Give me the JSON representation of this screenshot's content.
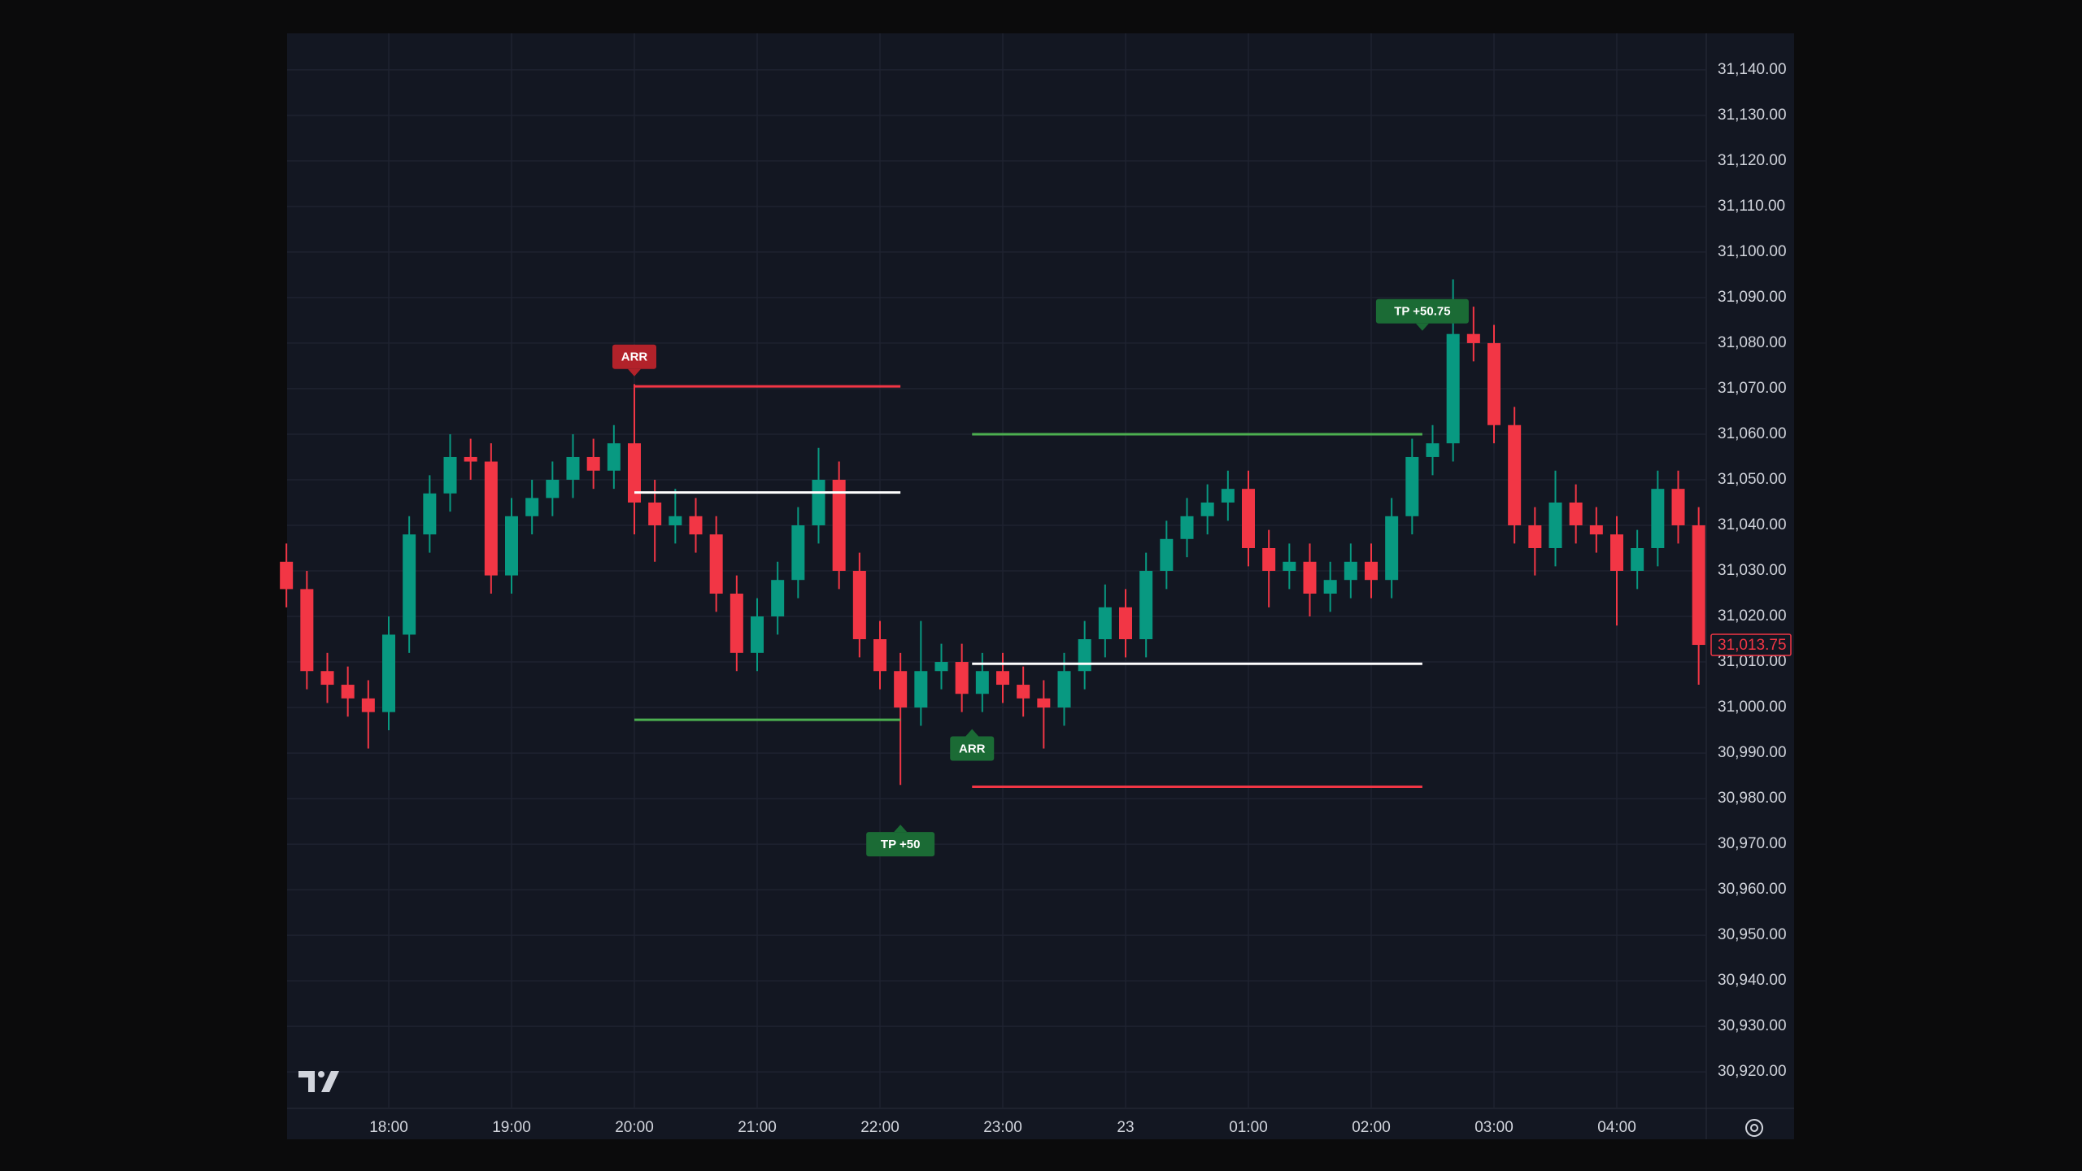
{
  "chart_data": {
    "type": "candlestick",
    "x": [
      "17:10",
      "17:20",
      "17:30",
      "17:40",
      "17:50",
      "18:00",
      "18:10",
      "18:20",
      "18:30",
      "18:40",
      "18:50",
      "19:00",
      "19:10",
      "19:20",
      "19:30",
      "19:40",
      "19:50",
      "20:00",
      "20:10",
      "20:20",
      "20:30",
      "20:40",
      "20:50",
      "21:00",
      "21:10",
      "21:20",
      "21:30",
      "21:40",
      "21:50",
      "22:00",
      "22:10",
      "22:20",
      "22:30",
      "22:40",
      "22:50",
      "23:00",
      "23:10",
      "23:20",
      "23:30",
      "23:40",
      "23:50",
      "00:00",
      "00:10",
      "00:20",
      "00:30",
      "00:40",
      "00:50",
      "01:00",
      "01:10",
      "01:20",
      "01:30",
      "01:40",
      "01:50",
      "02:00",
      "02:10",
      "02:20",
      "02:30",
      "02:40",
      "02:50",
      "03:00",
      "03:10",
      "03:20",
      "03:30",
      "03:40",
      "03:50",
      "04:00",
      "04:10",
      "04:20",
      "04:30",
      "04:40"
    ],
    "open": [
      31032,
      31026,
      31008,
      31005,
      31002,
      30999,
      31016,
      31038,
      31047,
      31055,
      31054,
      31029,
      31042,
      31046,
      31050,
      31055,
      31052,
      31058,
      31045,
      31040,
      31042,
      31038,
      31025,
      31012,
      31020,
      31028,
      31040,
      31050,
      31030,
      31015,
      31008,
      31000,
      31008,
      31010,
      31003,
      31008,
      31005,
      31002,
      31000,
      31008,
      31015,
      31022,
      31015,
      31030,
      31037,
      31042,
      31045,
      31048,
      31035,
      31030,
      31032,
      31025,
      31028,
      31032,
      31028,
      31042,
      31055,
      31058,
      31082,
      31080,
      31062,
      31040,
      31035,
      31045,
      31040,
      31038,
      31030,
      31035,
      31048,
      31040
    ],
    "high": [
      31036,
      31030,
      31012,
      31009,
      31006,
      31020,
      31042,
      31051,
      31060,
      31059,
      31058,
      31046,
      31050,
      31054,
      31060,
      31059,
      31062,
      31071,
      31050,
      31048,
      31046,
      31042,
      31029,
      31024,
      31032,
      31044,
      31057,
      31054,
      31034,
      31019,
      31012,
      31019,
      31014,
      31014,
      31012,
      31012,
      31009,
      31006,
      31012,
      31019,
      31027,
      31026,
      31034,
      31041,
      31046,
      31049,
      31052,
      31052,
      31039,
      31036,
      31036,
      31032,
      31036,
      31036,
      31046,
      31059,
      31062,
      31094,
      31088,
      31084,
      31066,
      31044,
      31052,
      31049,
      31044,
      31042,
      31039,
      31052,
      31052,
      31044
    ],
    "low": [
      31022,
      31004,
      31001,
      30998,
      30991,
      30995,
      31012,
      31034,
      31043,
      31050,
      31025,
      31025,
      31038,
      31042,
      31046,
      31048,
      31048,
      31038,
      31032,
      31036,
      31034,
      31021,
      31008,
      31008,
      31016,
      31024,
      31036,
      31026,
      31011,
      31004,
      30983,
      30996,
      31004,
      30999,
      30999,
      31001,
      30998,
      30991,
      30996,
      31004,
      31011,
      31011,
      31011,
      31026,
      31033,
      31038,
      31041,
      31031,
      31022,
      31026,
      31020,
      31021,
      31024,
      31024,
      31024,
      31038,
      31051,
      31054,
      31076,
      31058,
      31036,
      31029,
      31031,
      31036,
      31034,
      31018,
      31026,
      31031,
      31036,
      31005
    ],
    "close": [
      31026,
      31008,
      31005,
      31002,
      30999,
      31016,
      31038,
      31047,
      31055,
      31054,
      31029,
      31042,
      31046,
      31050,
      31055,
      31052,
      31058,
      31045,
      31040,
      31042,
      31038,
      31025,
      31012,
      31020,
      31028,
      31040,
      31050,
      31030,
      31015,
      31008,
      31000,
      31008,
      31010,
      31003,
      31008,
      31005,
      31002,
      31000,
      31008,
      31015,
      31022,
      31015,
      31030,
      31037,
      31042,
      31045,
      31048,
      31035,
      31030,
      31032,
      31025,
      31028,
      31032,
      31028,
      31042,
      31055,
      31058,
      31082,
      31080,
      31062,
      31040,
      31035,
      31045,
      31040,
      31038,
      31030,
      31035,
      31048,
      31040,
      31013.75
    ],
    "up_color": "#089981",
    "down_color": "#f23645",
    "ylim": [
      30912,
      31148
    ],
    "yticks": [
      {
        "value": 30920,
        "label": "30,920.00"
      },
      {
        "value": 30930,
        "label": "30,930.00"
      },
      {
        "value": 30940,
        "label": "30,940.00"
      },
      {
        "value": 30950,
        "label": "30,950.00"
      },
      {
        "value": 30960,
        "label": "30,960.00"
      },
      {
        "value": 30970,
        "label": "30,970.00"
      },
      {
        "value": 30980,
        "label": "30,980.00"
      },
      {
        "value": 30990,
        "label": "30,990.00"
      },
      {
        "value": 31000,
        "label": "31,000.00"
      },
      {
        "value": 31010,
        "label": "31,010.00"
      },
      {
        "value": 31020,
        "label": "31,020.00"
      },
      {
        "value": 31030,
        "label": "31,030.00"
      },
      {
        "value": 31040,
        "label": "31,040.00"
      },
      {
        "value": 31050,
        "label": "31,050.00"
      },
      {
        "value": 31060,
        "label": "31,060.00"
      },
      {
        "value": 31070,
        "label": "31,070.00"
      },
      {
        "value": 31080,
        "label": "31,080.00"
      },
      {
        "value": 31090,
        "label": "31,090.00"
      },
      {
        "value": 31100,
        "label": "31,100.00"
      },
      {
        "value": 31110,
        "label": "31,110.00"
      },
      {
        "value": 31120,
        "label": "31,120.00"
      },
      {
        "value": 31130,
        "label": "31,130.00"
      },
      {
        "value": 31140,
        "label": "31,140.00"
      }
    ],
    "xticks": [
      {
        "value": "18:00",
        "label": "18:00"
      },
      {
        "value": "19:00",
        "label": "19:00"
      },
      {
        "value": "20:00",
        "label": "20:00"
      },
      {
        "value": "21:00",
        "label": "21:00"
      },
      {
        "value": "22:00",
        "label": "22:00"
      },
      {
        "value": "23:00",
        "label": "23:00"
      },
      {
        "value": "00:00",
        "label": "23"
      },
      {
        "value": "01:00",
        "label": "01:00"
      },
      {
        "value": "02:00",
        "label": "02:00"
      },
      {
        "value": "03:00",
        "label": "03:00"
      },
      {
        "value": "04:00",
        "label": "04:00"
      }
    ],
    "grid": true,
    "last_price": {
      "value": 31013.75,
      "label": "31,013.75"
    },
    "levels": [
      {
        "from": "20:00",
        "to": "22:10",
        "value": 31070.5,
        "color": "#f23645"
      },
      {
        "from": "20:00",
        "to": "22:10",
        "value": 31047.2,
        "color": "#ffffff"
      },
      {
        "from": "20:00",
        "to": "22:10",
        "value": 30997.3,
        "color": "#4caf50"
      },
      {
        "from": "22:45",
        "to": "02:25",
        "value": 31060,
        "color": "#4caf50"
      },
      {
        "from": "22:45",
        "to": "02:25",
        "value": 31009.6,
        "color": "#ffffff"
      },
      {
        "from": "22:45",
        "to": "02:25",
        "value": 30982.6,
        "color": "#f23645"
      }
    ],
    "markers": [
      {
        "text": "ARR",
        "x": "20:00",
        "value": 31077,
        "color": "#b2222a",
        "dir": "down"
      },
      {
        "text": "TP +50",
        "x": "22:10",
        "value": 30970,
        "color": "#1b6b35",
        "dir": "up"
      },
      {
        "text": "ARR",
        "x": "22:45",
        "value": 30991,
        "color": "#1b6b35",
        "dir": "up"
      },
      {
        "text": "TP +50.75",
        "x": "02:25",
        "value": 31087,
        "color": "#1b6b35",
        "dir": "down"
      }
    ]
  }
}
